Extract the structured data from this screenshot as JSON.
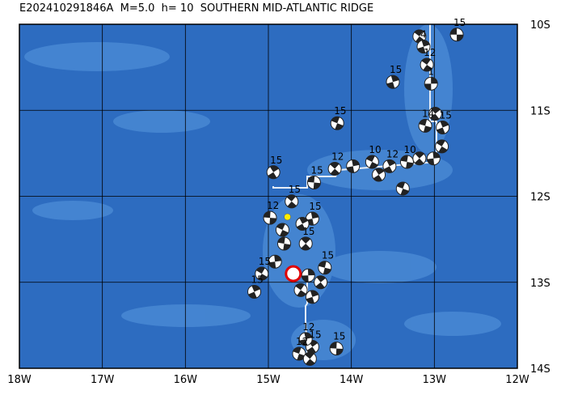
{
  "map": {
    "title": "E202410291846A  M=5.0  h= 10  SOUTHERN MID-ATLANTIC RIDGE",
    "xlim": [
      -18,
      -12
    ],
    "ylim": [
      -14,
      -10
    ],
    "xticks": [
      {
        "value": -18,
        "label": "18W"
      },
      {
        "value": -17,
        "label": "17W"
      },
      {
        "value": -16,
        "label": "16W"
      },
      {
        "value": -15,
        "label": "15W"
      },
      {
        "value": -14,
        "label": "14W"
      },
      {
        "value": -13,
        "label": "13W"
      },
      {
        "value": -12,
        "label": "12W"
      }
    ],
    "yticks": [
      {
        "value": -10,
        "label": "10S"
      },
      {
        "value": -11,
        "label": "11S"
      },
      {
        "value": -12,
        "label": "12S"
      },
      {
        "value": -13,
        "label": "13S"
      },
      {
        "value": -14,
        "label": "14S"
      }
    ],
    "epicenter": {
      "lon": -14.7,
      "lat": -12.9
    },
    "centroid": {
      "lon": -14.77,
      "lat": -12.24
    },
    "events": [
      {
        "lon": -12.73,
        "lat": -10.12,
        "label": 15
      },
      {
        "lon": -13.18,
        "lat": -10.14
      },
      {
        "lon": -13.5,
        "lat": -10.67,
        "label": 15
      },
      {
        "lon": -14.17,
        "lat": -11.15,
        "label": 15
      },
      {
        "lon": -14.94,
        "lat": -11.72,
        "label": 15
      },
      {
        "lon": -14.45,
        "lat": -11.84,
        "label": 15
      },
      {
        "lon": -14.2,
        "lat": -11.68,
        "label": 12
      },
      {
        "lon": -13.98,
        "lat": -11.65
      },
      {
        "lon": -13.75,
        "lat": -11.6,
        "label": 10
      },
      {
        "lon": -13.54,
        "lat": -11.65,
        "label": 12
      },
      {
        "lon": -13.33,
        "lat": -11.6,
        "label": 10
      },
      {
        "lon": -13.18,
        "lat": -11.56
      },
      {
        "lon": -13.01,
        "lat": -11.56
      },
      {
        "lon": -12.91,
        "lat": -11.42
      },
      {
        "lon": -12.9,
        "lat": -11.2,
        "label": 15
      },
      {
        "lon": -13.11,
        "lat": -11.18,
        "label": 14
      },
      {
        "lon": -12.99,
        "lat": -11.04
      },
      {
        "lon": -13.04,
        "lat": -10.69,
        "label": 1
      },
      {
        "lon": -13.09,
        "lat": -10.47,
        "label": 12
      },
      {
        "lon": -13.13,
        "lat": -10.26,
        "label": 4
      },
      {
        "lon": -13.38,
        "lat": -11.91
      },
      {
        "lon": -13.67,
        "lat": -11.75
      },
      {
        "lon": -14.98,
        "lat": -12.25,
        "label": 12
      },
      {
        "lon": -14.72,
        "lat": -12.06,
        "label": 15
      },
      {
        "lon": -14.47,
        "lat": -12.26,
        "label": 15
      },
      {
        "lon": -14.83,
        "lat": -12.39
      },
      {
        "lon": -14.59,
        "lat": -12.32
      },
      {
        "lon": -14.81,
        "lat": -12.55
      },
      {
        "lon": -14.55,
        "lat": -12.55,
        "label": 15
      },
      {
        "lon": -14.92,
        "lat": -12.76
      },
      {
        "lon": -15.08,
        "lat": -12.9,
        "label": 15
      },
      {
        "lon": -15.17,
        "lat": -13.11,
        "label": 15
      },
      {
        "lon": -14.32,
        "lat": -12.83,
        "label": 15
      },
      {
        "lon": -14.37,
        "lat": -13.0
      },
      {
        "lon": -14.52,
        "lat": -12.92
      },
      {
        "lon": -14.61,
        "lat": -13.09
      },
      {
        "lon": -14.47,
        "lat": -13.17
      },
      {
        "lon": -14.63,
        "lat": -13.83,
        "label": 12
      },
      {
        "lon": -14.47,
        "lat": -13.75,
        "label": 15
      },
      {
        "lon": -14.18,
        "lat": -13.77,
        "label": 15
      },
      {
        "lon": -14.5,
        "lat": -13.89
      },
      {
        "lon": -14.55,
        "lat": -13.66,
        "label": 12
      }
    ]
  }
}
